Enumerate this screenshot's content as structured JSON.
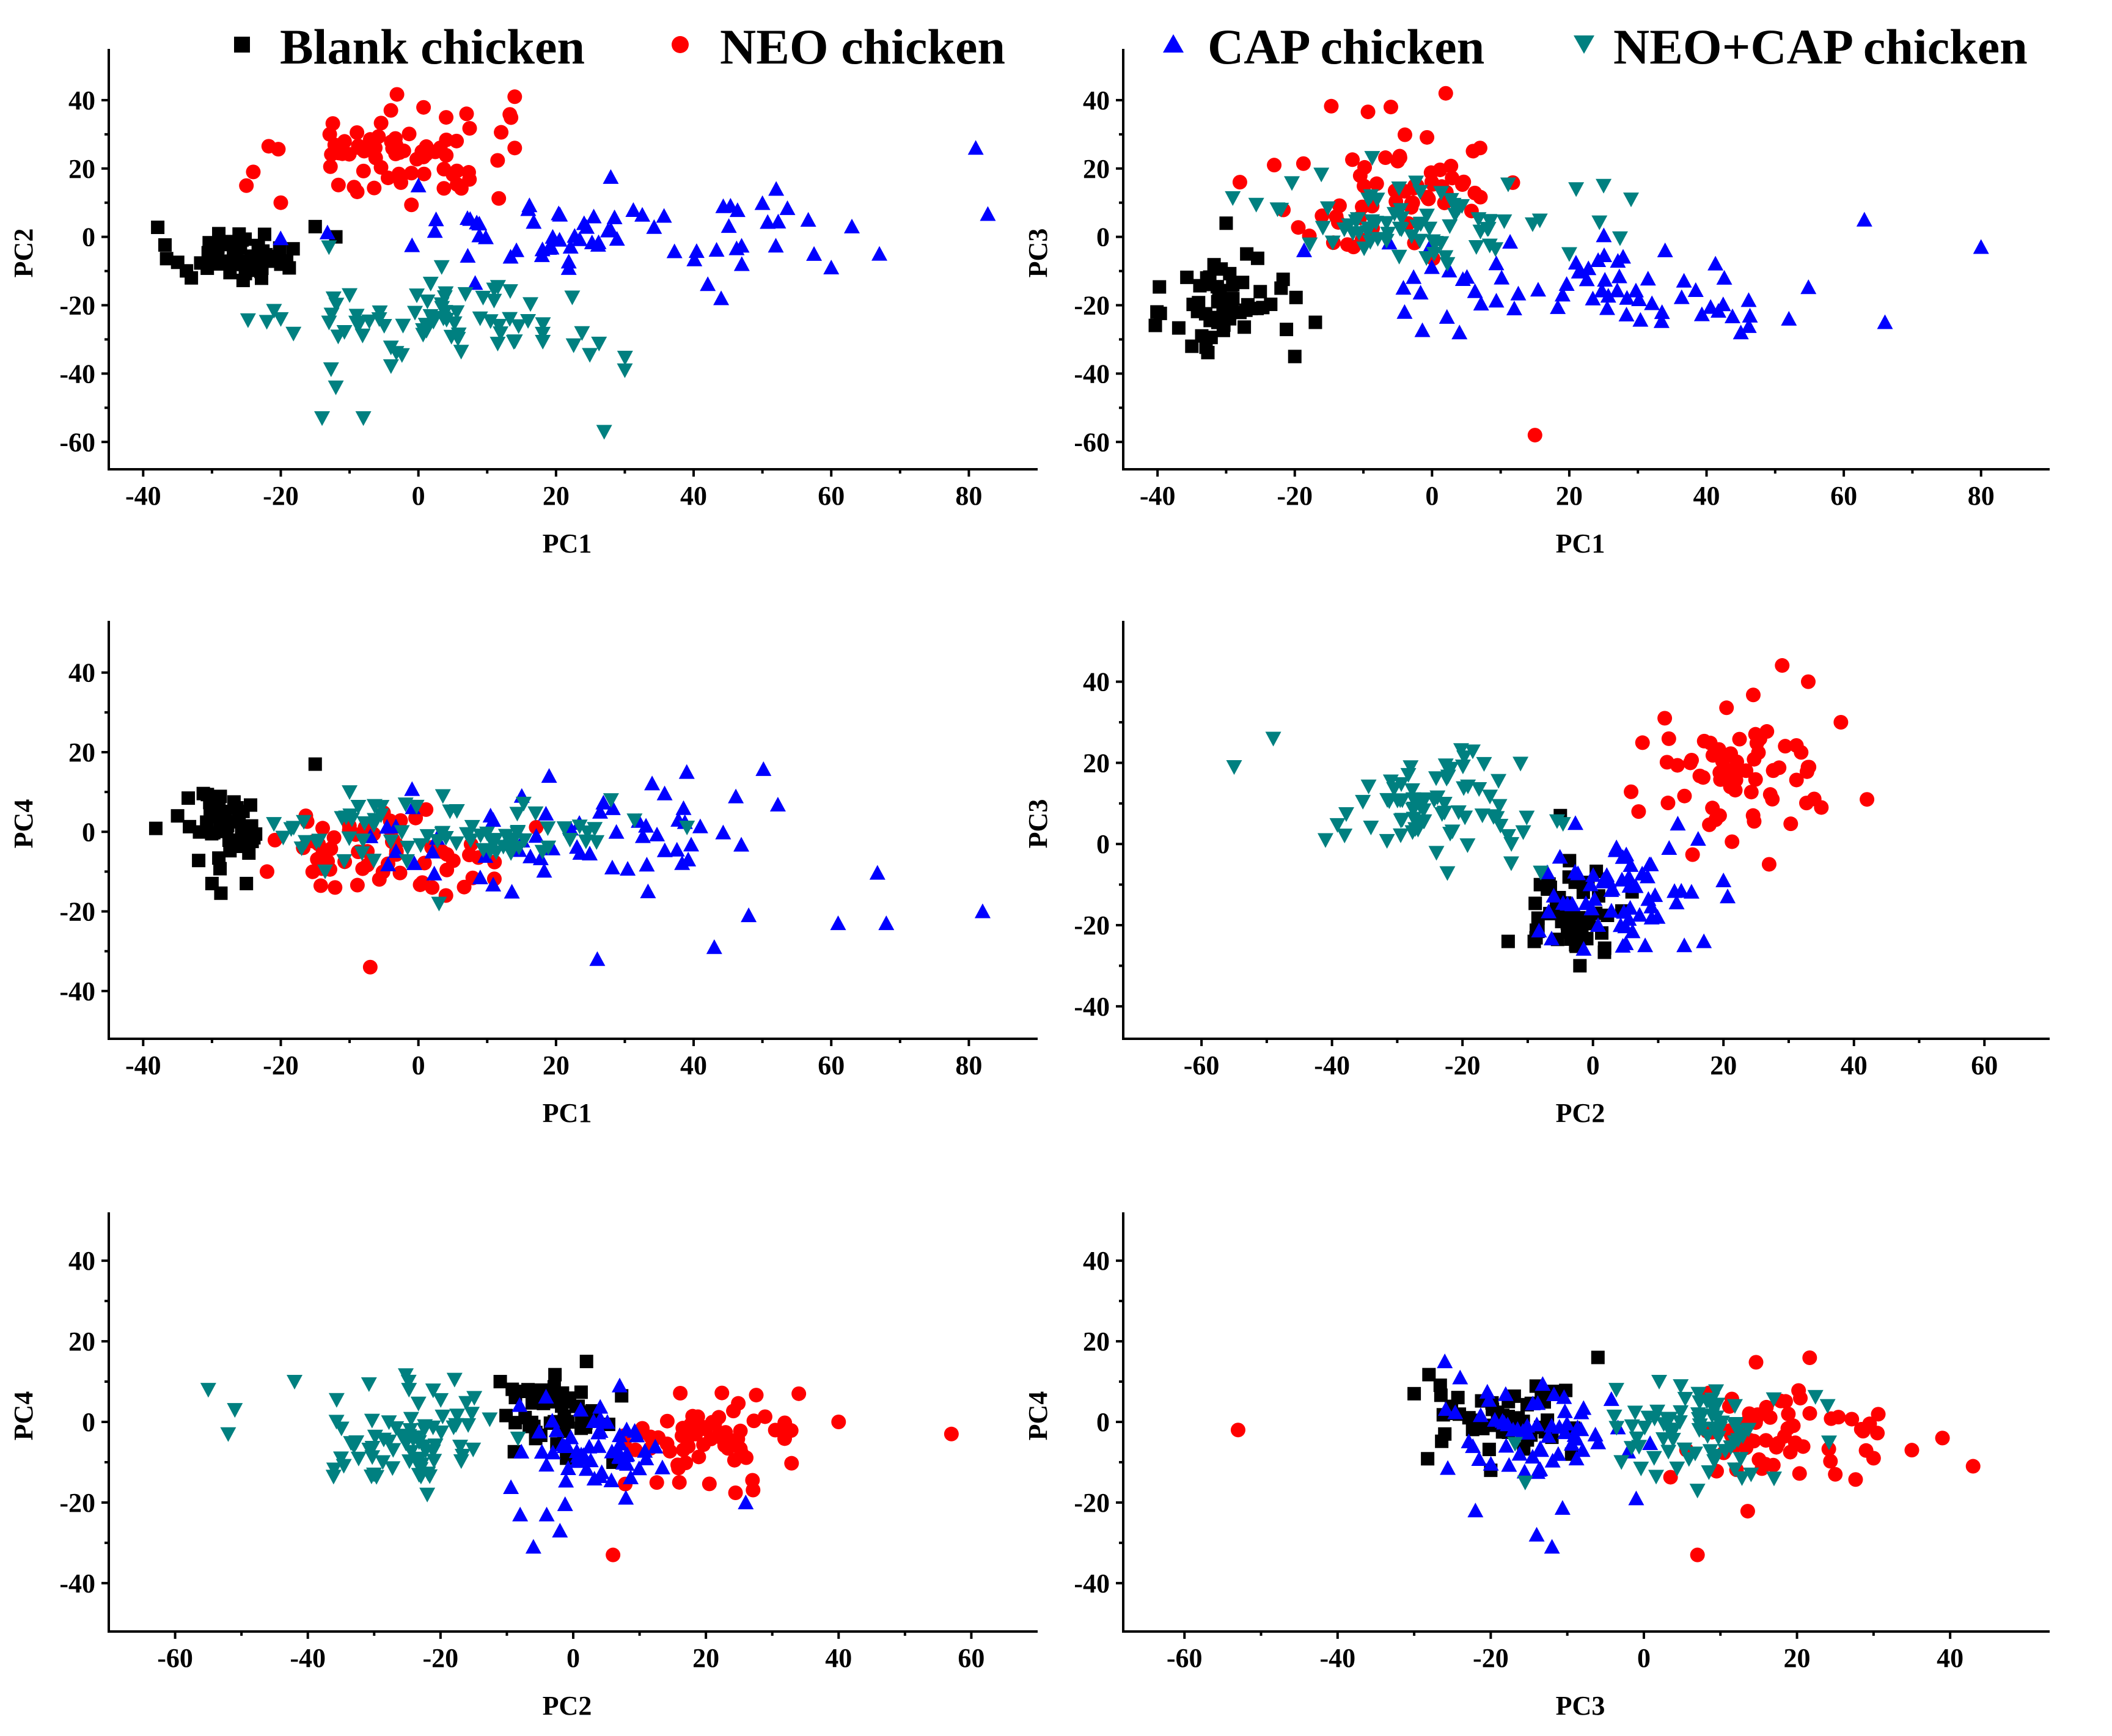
{
  "legend": [
    {
      "key": "blank",
      "label": "Blank chicken",
      "color": "#000000",
      "marker": "square"
    },
    {
      "key": "neo",
      "label": "NEO chicken",
      "color": "#ff0000",
      "marker": "circle"
    },
    {
      "key": "cap",
      "label": "CAP chicken",
      "color": "#0000ff",
      "marker": "triangle-up"
    },
    {
      "key": "neocap",
      "label": "NEO+CAP chicken",
      "color": "#008080",
      "marker": "triangle-down"
    }
  ],
  "chart_data": [
    {
      "type": "scatter",
      "id": "pc1-pc2",
      "xlabel": "PC1",
      "ylabel": "PC2",
      "xlim": [
        -45,
        90
      ],
      "ylim": [
        -68,
        55
      ],
      "xticks": [
        -40,
        -20,
        0,
        20,
        40,
        60,
        80
      ],
      "yticks": [
        40,
        20,
        0,
        -20,
        -40,
        -60
      ],
      "clusters": [
        {
          "series": "blank",
          "cx": -27,
          "cy": -5,
          "sx": 4.5,
          "sy": 4,
          "n": 55,
          "points": [
            [
              -15,
              3
            ],
            [
              -12,
              0
            ],
            [
              -20,
              -8
            ],
            [
              -33,
              -12
            ]
          ]
        },
        {
          "series": "neo",
          "cx": -3,
          "cy": 24,
          "sx": 8,
          "sy": 7,
          "n": 70,
          "points": [
            [
              14,
              41
            ],
            [
              -25,
              15
            ],
            [
              -24,
              19
            ],
            [
              14,
              26
            ],
            [
              -20,
              10
            ],
            [
              7,
              36
            ],
            [
              -4,
              37
            ]
          ]
        },
        {
          "series": "cap",
          "cx": 28,
          "cy": 2,
          "sx": 17,
          "sy": 6,
          "n": 65,
          "points": [
            [
              81,
              26
            ],
            [
              67,
              -5
            ],
            [
              60,
              -9
            ],
            [
              44,
              -18
            ],
            [
              63,
              3
            ],
            [
              52,
              14
            ],
            [
              0,
              15
            ],
            [
              47,
              -8
            ]
          ]
        },
        {
          "series": "neocap",
          "cx": 5,
          "cy": -25,
          "sx": 12,
          "sy": 6,
          "n": 75,
          "points": [
            [
              -14,
              -53
            ],
            [
              -8,
              -53
            ],
            [
              -12,
              -44
            ],
            [
              27,
              -57
            ],
            [
              30,
              -39
            ],
            [
              -20,
              -24
            ],
            [
              -13,
              -3
            ],
            [
              -10,
              -17
            ]
          ]
        }
      ]
    },
    {
      "type": "scatter",
      "id": "pc1-pc3",
      "xlabel": "PC1",
      "ylabel": "PC3",
      "xlim": [
        -45,
        90
      ],
      "ylim": [
        -68,
        55
      ],
      "xticks": [
        -40,
        -20,
        0,
        20,
        40,
        60,
        80
      ],
      "yticks": [
        40,
        20,
        0,
        -20,
        -40,
        -60
      ],
      "clusters": [
        {
          "series": "blank",
          "cx": -30,
          "cy": -20,
          "sx": 4,
          "sy": 7,
          "n": 55,
          "points": [
            [
              -35,
              -32
            ],
            [
              -20,
              -35
            ],
            [
              -22,
              -15
            ],
            [
              -17,
              -25
            ],
            [
              -30,
              4
            ],
            [
              -27,
              -5
            ]
          ]
        },
        {
          "series": "neo",
          "cx": -5,
          "cy": 13,
          "sx": 9,
          "sy": 9,
          "n": 60,
          "points": [
            [
              2,
              42
            ],
            [
              -6,
              38
            ],
            [
              15,
              -58
            ],
            [
              -28,
              16
            ],
            [
              7,
              26
            ],
            [
              -23,
              21
            ]
          ]
        },
        {
          "series": "cap",
          "cx": 25,
          "cy": -15,
          "sx": 17,
          "sy": 7,
          "n": 65,
          "points": [
            [
              80,
              -3
            ],
            [
              66,
              -25
            ],
            [
              63,
              5
            ],
            [
              52,
              -24
            ],
            [
              45,
              -28
            ],
            [
              -4,
              -22
            ],
            [
              4,
              -28
            ]
          ]
        },
        {
          "series": "neocap",
          "cx": -2,
          "cy": 5,
          "sx": 10,
          "sy": 6,
          "n": 75,
          "points": [
            [
              25,
              15
            ],
            [
              29,
              11
            ],
            [
              -22,
              8
            ],
            [
              20,
              -5
            ],
            [
              21,
              14
            ]
          ]
        }
      ]
    },
    {
      "type": "scatter",
      "id": "pc1-pc4",
      "xlabel": "PC1",
      "ylabel": "PC4",
      "xlim": [
        -45,
        90
      ],
      "ylim": [
        -52,
        53
      ],
      "xticks": [
        -40,
        -20,
        0,
        20,
        40,
        60,
        80
      ],
      "yticks": [
        40,
        20,
        0,
        -20,
        -40
      ],
      "clusters": [
        {
          "series": "blank",
          "cx": -28,
          "cy": 1,
          "sx": 3.5,
          "sy": 5,
          "n": 50,
          "points": [
            [
              -15,
              17
            ],
            [
              -30,
              -13
            ],
            [
              -25,
              -13
            ],
            [
              -35,
              4
            ]
          ]
        },
        {
          "series": "neo",
          "cx": -6,
          "cy": -4,
          "sx": 8,
          "sy": 5,
          "n": 60,
          "points": [
            [
              -7,
              -34
            ],
            [
              -22,
              -10
            ],
            [
              4,
              -16
            ],
            [
              2,
              -14
            ]
          ]
        },
        {
          "series": "cap",
          "cx": 25,
          "cy": -2,
          "sx": 18,
          "sy": 7,
          "n": 60,
          "points": [
            [
              82,
              -20
            ],
            [
              68,
              -23
            ],
            [
              61,
              -23
            ],
            [
              48,
              -21
            ],
            [
              43,
              -29
            ],
            [
              26,
              -32
            ],
            [
              39,
              15
            ],
            [
              19,
              14
            ]
          ]
        },
        {
          "series": "neocap",
          "cx": 5,
          "cy": 0,
          "sx": 12,
          "sy": 4,
          "n": 75,
          "points": [
            [
              3,
              -18
            ],
            [
              -10,
              10
            ],
            [
              28,
              8
            ],
            [
              -21,
              2
            ]
          ]
        }
      ]
    },
    {
      "type": "scatter",
      "id": "pc2-pc3",
      "xlabel": "PC2",
      "ylabel": "PC3",
      "xlim": [
        -72,
        70
      ],
      "ylim": [
        -48,
        55
      ],
      "xticks": [
        -60,
        -40,
        -20,
        0,
        20,
        40,
        60
      ],
      "yticks": [
        40,
        20,
        0,
        -20,
        -40
      ],
      "clusters": [
        {
          "series": "blank",
          "cx": -3,
          "cy": -17,
          "sx": 4,
          "sy": 5,
          "n": 50,
          "points": [
            [
              -9,
              -24
            ],
            [
              -13,
              -24
            ],
            [
              -2,
              -30
            ],
            [
              -5,
              7
            ]
          ]
        },
        {
          "series": "neo",
          "cx": 22,
          "cy": 17,
          "sx": 7,
          "sy": 7,
          "n": 65,
          "points": [
            [
              29,
              44
            ],
            [
              33,
              40
            ],
            [
              38,
              30
            ],
            [
              42,
              11
            ],
            [
              11,
              31
            ],
            [
              35,
              9
            ],
            [
              27,
              -5
            ],
            [
              7,
              8
            ]
          ]
        },
        {
          "series": "cap",
          "cx": 5,
          "cy": -12,
          "sx": 6,
          "sy": 7,
          "n": 60,
          "points": [
            [
              17,
              -24
            ],
            [
              14,
              -25
            ],
            [
              20,
              -9
            ],
            [
              13,
              5
            ],
            [
              -7,
              -7
            ],
            [
              8,
              -25
            ]
          ]
        },
        {
          "series": "neocap",
          "cx": -25,
          "cy": 9,
          "sx": 7,
          "sy": 6,
          "n": 75,
          "points": [
            [
              -55,
              19
            ],
            [
              -49,
              26
            ],
            [
              -41,
              1
            ],
            [
              -8,
              -7
            ],
            [
              -13,
              2
            ]
          ]
        }
      ]
    },
    {
      "type": "scatter",
      "id": "pc2-pc4",
      "xlabel": "PC2",
      "ylabel": "PC4",
      "xlim": [
        -70,
        70
      ],
      "ylim": [
        -52,
        52
      ],
      "xticks": [
        -60,
        -40,
        -20,
        0,
        20,
        40,
        60
      ],
      "yticks": [
        40,
        20,
        0,
        -20,
        -40
      ],
      "clusters": [
        {
          "series": "blank",
          "cx": -3,
          "cy": 2,
          "sx": 4,
          "sy": 5,
          "n": 50,
          "points": [
            [
              2,
              15
            ],
            [
              -11,
              10
            ],
            [
              6,
              -10
            ],
            [
              -1,
              -9
            ]
          ]
        },
        {
          "series": "neo",
          "cx": 21,
          "cy": -4,
          "sx": 6,
          "sy": 5,
          "n": 65,
          "points": [
            [
              57,
              -3
            ],
            [
              40,
              0
            ],
            [
              6,
              -33
            ],
            [
              34,
              7
            ],
            [
              16,
              -15
            ]
          ]
        },
        {
          "series": "cap",
          "cx": 3,
          "cy": -6,
          "sx": 5,
          "sy": 6,
          "n": 60,
          "points": [
            [
              -6,
              -31
            ],
            [
              -8,
              -23
            ],
            [
              -4,
              -23
            ],
            [
              -2,
              -27
            ],
            [
              26,
              -20
            ],
            [
              7,
              9
            ]
          ]
        },
        {
          "series": "neocap",
          "cx": -24,
          "cy": -4,
          "sx": 6,
          "sy": 6,
          "n": 75,
          "points": [
            [
              -55,
              8
            ],
            [
              -51,
              3
            ],
            [
              -52,
              -3
            ],
            [
              -42,
              10
            ],
            [
              -22,
              -18
            ],
            [
              -35,
              -9
            ]
          ]
        }
      ]
    },
    {
      "type": "scatter",
      "id": "pc3-pc4",
      "xlabel": "PC3",
      "ylabel": "PC4",
      "xlim": [
        -68,
        53
      ],
      "ylim": [
        -52,
        52
      ],
      "xticks": [
        -60,
        -40,
        -20,
        0,
        20,
        40
      ],
      "yticks": [
        40,
        20,
        0,
        -20,
        -40
      ],
      "clusters": [
        {
          "series": "blank",
          "cx": -18,
          "cy": 1,
          "sx": 6,
          "sy": 5,
          "n": 50,
          "points": [
            [
              -30,
              7
            ],
            [
              -26,
              -3
            ],
            [
              -6,
              16
            ],
            [
              -20,
              -12
            ]
          ]
        },
        {
          "series": "neo",
          "cx": 17,
          "cy": -4,
          "sx": 7,
          "sy": 6,
          "n": 60,
          "points": [
            [
              -53,
              -2
            ],
            [
              43,
              -11
            ],
            [
              39,
              -4
            ],
            [
              35,
              -7
            ],
            [
              7,
              -33
            ],
            [
              30,
              -9
            ],
            [
              25,
              -13
            ]
          ]
        },
        {
          "series": "cap",
          "cx": -14,
          "cy": -3,
          "sx": 6,
          "sy": 6,
          "n": 60,
          "points": [
            [
              -12,
              -31
            ],
            [
              -14,
              -28
            ],
            [
              -22,
              -22
            ],
            [
              -1,
              -19
            ],
            [
              -26,
              15
            ],
            [
              -24,
              11
            ]
          ]
        },
        {
          "series": "neocap",
          "cx": 8,
          "cy": -1,
          "sx": 6,
          "sy": 5,
          "n": 75,
          "points": [
            [
              7,
              -17
            ],
            [
              14,
              -13
            ],
            [
              17,
              -14
            ],
            [
              2,
              10
            ],
            [
              24,
              4
            ]
          ]
        }
      ]
    }
  ]
}
